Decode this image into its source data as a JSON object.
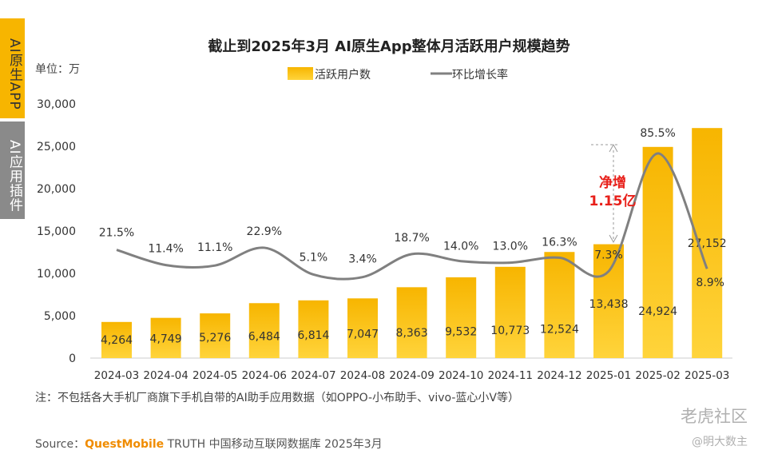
{
  "side_tabs": {
    "native": "AI原生APP",
    "plugin": "AI应用插件"
  },
  "note": "注：不包括各大手机厂商旗下手机自带的AI助手应用数据（如OPPO-小布助手、vivo-蓝心小V等）",
  "source": {
    "prefix": "Source：",
    "brand": "QuestMobile",
    "rest": " TRUTH 中国移动互联网数据库 2025年3月"
  },
  "watermark": {
    "community": "老虎社区",
    "author": "@明大数主"
  },
  "colors": {
    "bar": "#f7b500",
    "bar_light": "#ffd43b",
    "line": "#808080",
    "annotation": "#e8201a"
  },
  "chart_data": {
    "type": "bar",
    "title": "截止到2025年3月 AI原生App整体月活跃用户规模趋势",
    "unit": "单位：万",
    "ylim": [
      0,
      30000
    ],
    "yticks": [
      "0",
      "5,000",
      "10,000",
      "15,000",
      "20,000",
      "25,000",
      "30,000"
    ],
    "categories": [
      "2024-03",
      "2024-04",
      "2024-05",
      "2024-06",
      "2024-07",
      "2024-08",
      "2024-09",
      "2024-10",
      "2024-11",
      "2024-12",
      "2025-01",
      "2025-02",
      "2025-03"
    ],
    "series": [
      {
        "name": "活跃用户数",
        "values": [
          4264,
          4749,
          5276,
          6484,
          6814,
          7047,
          8363,
          9532,
          10773,
          12524,
          13438,
          24924,
          27152
        ],
        "labels": [
          "4,264",
          "4,749",
          "5,276",
          "6,484",
          "6,814",
          "7,047",
          "8,363",
          "9,532",
          "10,773",
          "12,524",
          "13,438",
          "24,924",
          "27,152"
        ]
      },
      {
        "name": "环比增长率",
        "values": [
          21.5,
          11.4,
          11.1,
          22.9,
          5.1,
          3.4,
          18.7,
          14.0,
          13.0,
          16.3,
          7.3,
          85.5,
          8.9
        ],
        "labels": [
          "21.5%",
          "11.4%",
          "11.1%",
          "22.9%",
          "5.1%",
          "3.4%",
          "18.7%",
          "14.0%",
          "13.0%",
          "16.3%",
          "7.3%",
          "85.5%",
          "8.9%"
        ]
      }
    ],
    "annotation": {
      "line1": "净增",
      "line2": "1.15亿"
    },
    "legend": "top"
  }
}
